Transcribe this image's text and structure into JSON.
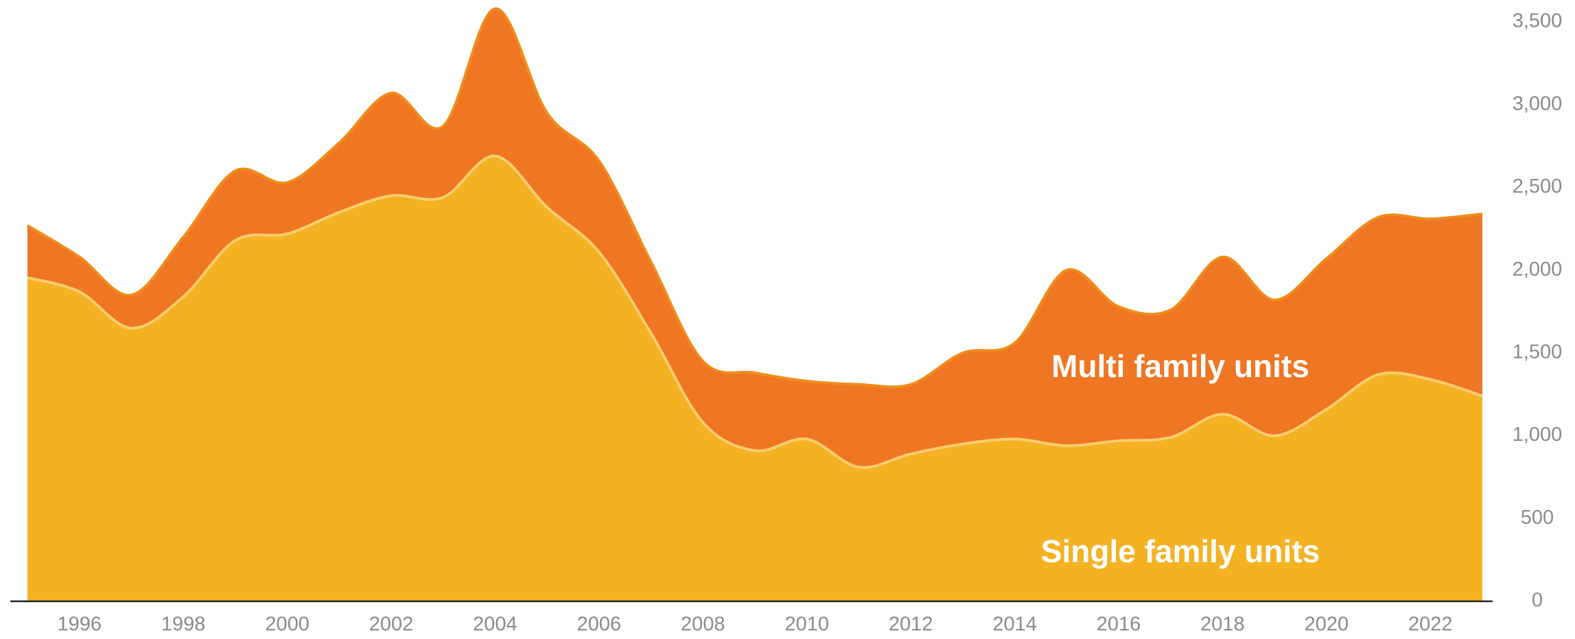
{
  "chart_data": {
    "type": "stacked-area",
    "x": [
      1995,
      1996,
      1997,
      1998,
      1999,
      2000,
      2001,
      2002,
      2003,
      2004,
      2005,
      2006,
      2007,
      2008,
      2009,
      2010,
      2011,
      2012,
      2013,
      2014,
      2015,
      2016,
      2017,
      2018,
      2019,
      2020,
      2021,
      2022,
      2023
    ],
    "series": [
      {
        "name": "Single family units",
        "color": "#f4b223",
        "line_color": "#f9cd70",
        "values": [
          1955,
          1870,
          1650,
          1840,
          2180,
          2220,
          2350,
          2450,
          2440,
          2690,
          2380,
          2110,
          1620,
          1080,
          910,
          980,
          810,
          890,
          950,
          980,
          940,
          970,
          990,
          1130,
          1000,
          1160,
          1370,
          1340,
          1240
        ]
      },
      {
        "name": "Multi family units",
        "color": "#ef7622",
        "line_color": "#f08c1c",
        "values": [
          315,
          210,
          200,
          360,
          420,
          310,
          420,
          620,
          430,
          890,
          570,
          550,
          430,
          370,
          470,
          350,
          500,
          420,
          550,
          580,
          1060,
          810,
          770,
          950,
          820,
          910,
          950,
          970,
          1100
        ]
      }
    ],
    "xlim": [
      1995,
      2023
    ],
    "xticks": [
      1996,
      1998,
      2000,
      2002,
      2004,
      2006,
      2008,
      2010,
      2012,
      2014,
      2016,
      2018,
      2020,
      2022
    ],
    "ylim": [
      0,
      3500
    ],
    "yticks": [
      0,
      {
        "value": 500,
        "label": "500"
      },
      {
        "value": 1000,
        "label": "1,000"
      },
      {
        "value": 1500,
        "label": "1,500"
      },
      {
        "value": 2000,
        "label": "2,000"
      },
      {
        "value": 2500,
        "label": "2,500"
      },
      {
        "value": 3000,
        "label": "3,000"
      },
      {
        "value": 3500,
        "label": "3,500"
      }
    ],
    "grid": false
  }
}
